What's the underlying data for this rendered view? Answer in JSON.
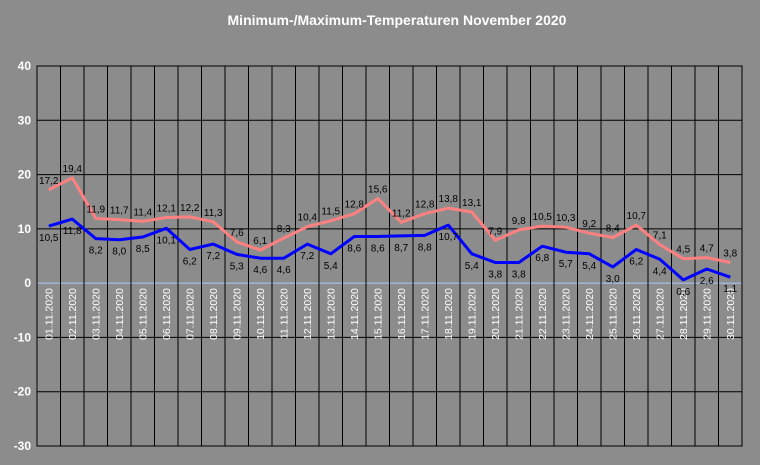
{
  "chart_data": {
    "type": "line",
    "title": "Minimum-/Maximum-Temperaturen November 2020",
    "ylim": [
      -30,
      40
    ],
    "yticks": [
      40,
      30,
      20,
      10,
      0,
      -10,
      -20,
      -30
    ],
    "grid": true,
    "x": [
      "01.11.2020",
      "02.11.2020",
      "03.11.2020",
      "04.11.2020",
      "05.11.2020",
      "06.11.2020",
      "07.11.2020",
      "08.11.2020",
      "09.11.2020",
      "10.11.2020",
      "11.11.2020",
      "12.11.2020",
      "13.11.2020",
      "14.11.2020",
      "15.11.2020",
      "16.11.2020",
      "17.11.2020",
      "18.11.2020",
      "19.11.2020",
      "20.11.2020",
      "21.11.2020",
      "22.11.2020",
      "23.11.2020",
      "24.11.2020",
      "25.11.2020",
      "26.11.2020",
      "27.11.2020",
      "28.11.2020",
      "29.11.2020",
      "30.11.2020"
    ],
    "series": [
      {
        "color": "#ff8080",
        "values": [
          17.2,
          19.4,
          11.9,
          11.7,
          11.4,
          12.1,
          12.2,
          11.3,
          7.6,
          6.1,
          8.3,
          10.4,
          11.5,
          12.8,
          15.6,
          11.2,
          12.8,
          13.8,
          13.1,
          7.9,
          9.8,
          10.5,
          10.3,
          9.2,
          8.4,
          10.7,
          7.1,
          4.5,
          4.7,
          3.8
        ],
        "labels": [
          "17,2",
          "19,4",
          "11,9",
          "11,7",
          "11,4",
          "12,1",
          "12,2",
          "11,3",
          "7,6",
          "6,1",
          "8,3",
          "10,4",
          "11,5",
          "12,8",
          "15,6",
          "11,2",
          "12,8",
          "13,8",
          "13,1",
          "7,9",
          "9,8",
          "10,5",
          "10,3",
          "9,2",
          "8,4",
          "10,7",
          "7,1",
          "4,5",
          "4,7",
          "3,8"
        ]
      },
      {
        "color": "#0000ff",
        "values": [
          10.5,
          11.8,
          8.2,
          8.0,
          8.5,
          10.1,
          6.2,
          7.2,
          5.3,
          4.6,
          4.6,
          7.2,
          5.4,
          8.6,
          8.6,
          8.7,
          8.8,
          10.7,
          5.4,
          3.8,
          3.8,
          6.8,
          5.7,
          5.4,
          3.0,
          6.2,
          4.4,
          0.6,
          2.6,
          1.1
        ],
        "labels": [
          "10,5",
          "11,8",
          "8,2",
          "8,0",
          "8,5",
          "10,1",
          "6,2",
          "7,2",
          "5,3",
          "4,6",
          "4,6",
          "7,2",
          "5,4",
          "8,6",
          "8,6",
          "8,7",
          "8,8",
          "10,7",
          "5,4",
          "3,8",
          "3,8",
          "6,8",
          "5,7",
          "5,4",
          "3,0",
          "6,2",
          "4,4",
          "0,6",
          "2,6",
          "1,1"
        ]
      }
    ]
  }
}
